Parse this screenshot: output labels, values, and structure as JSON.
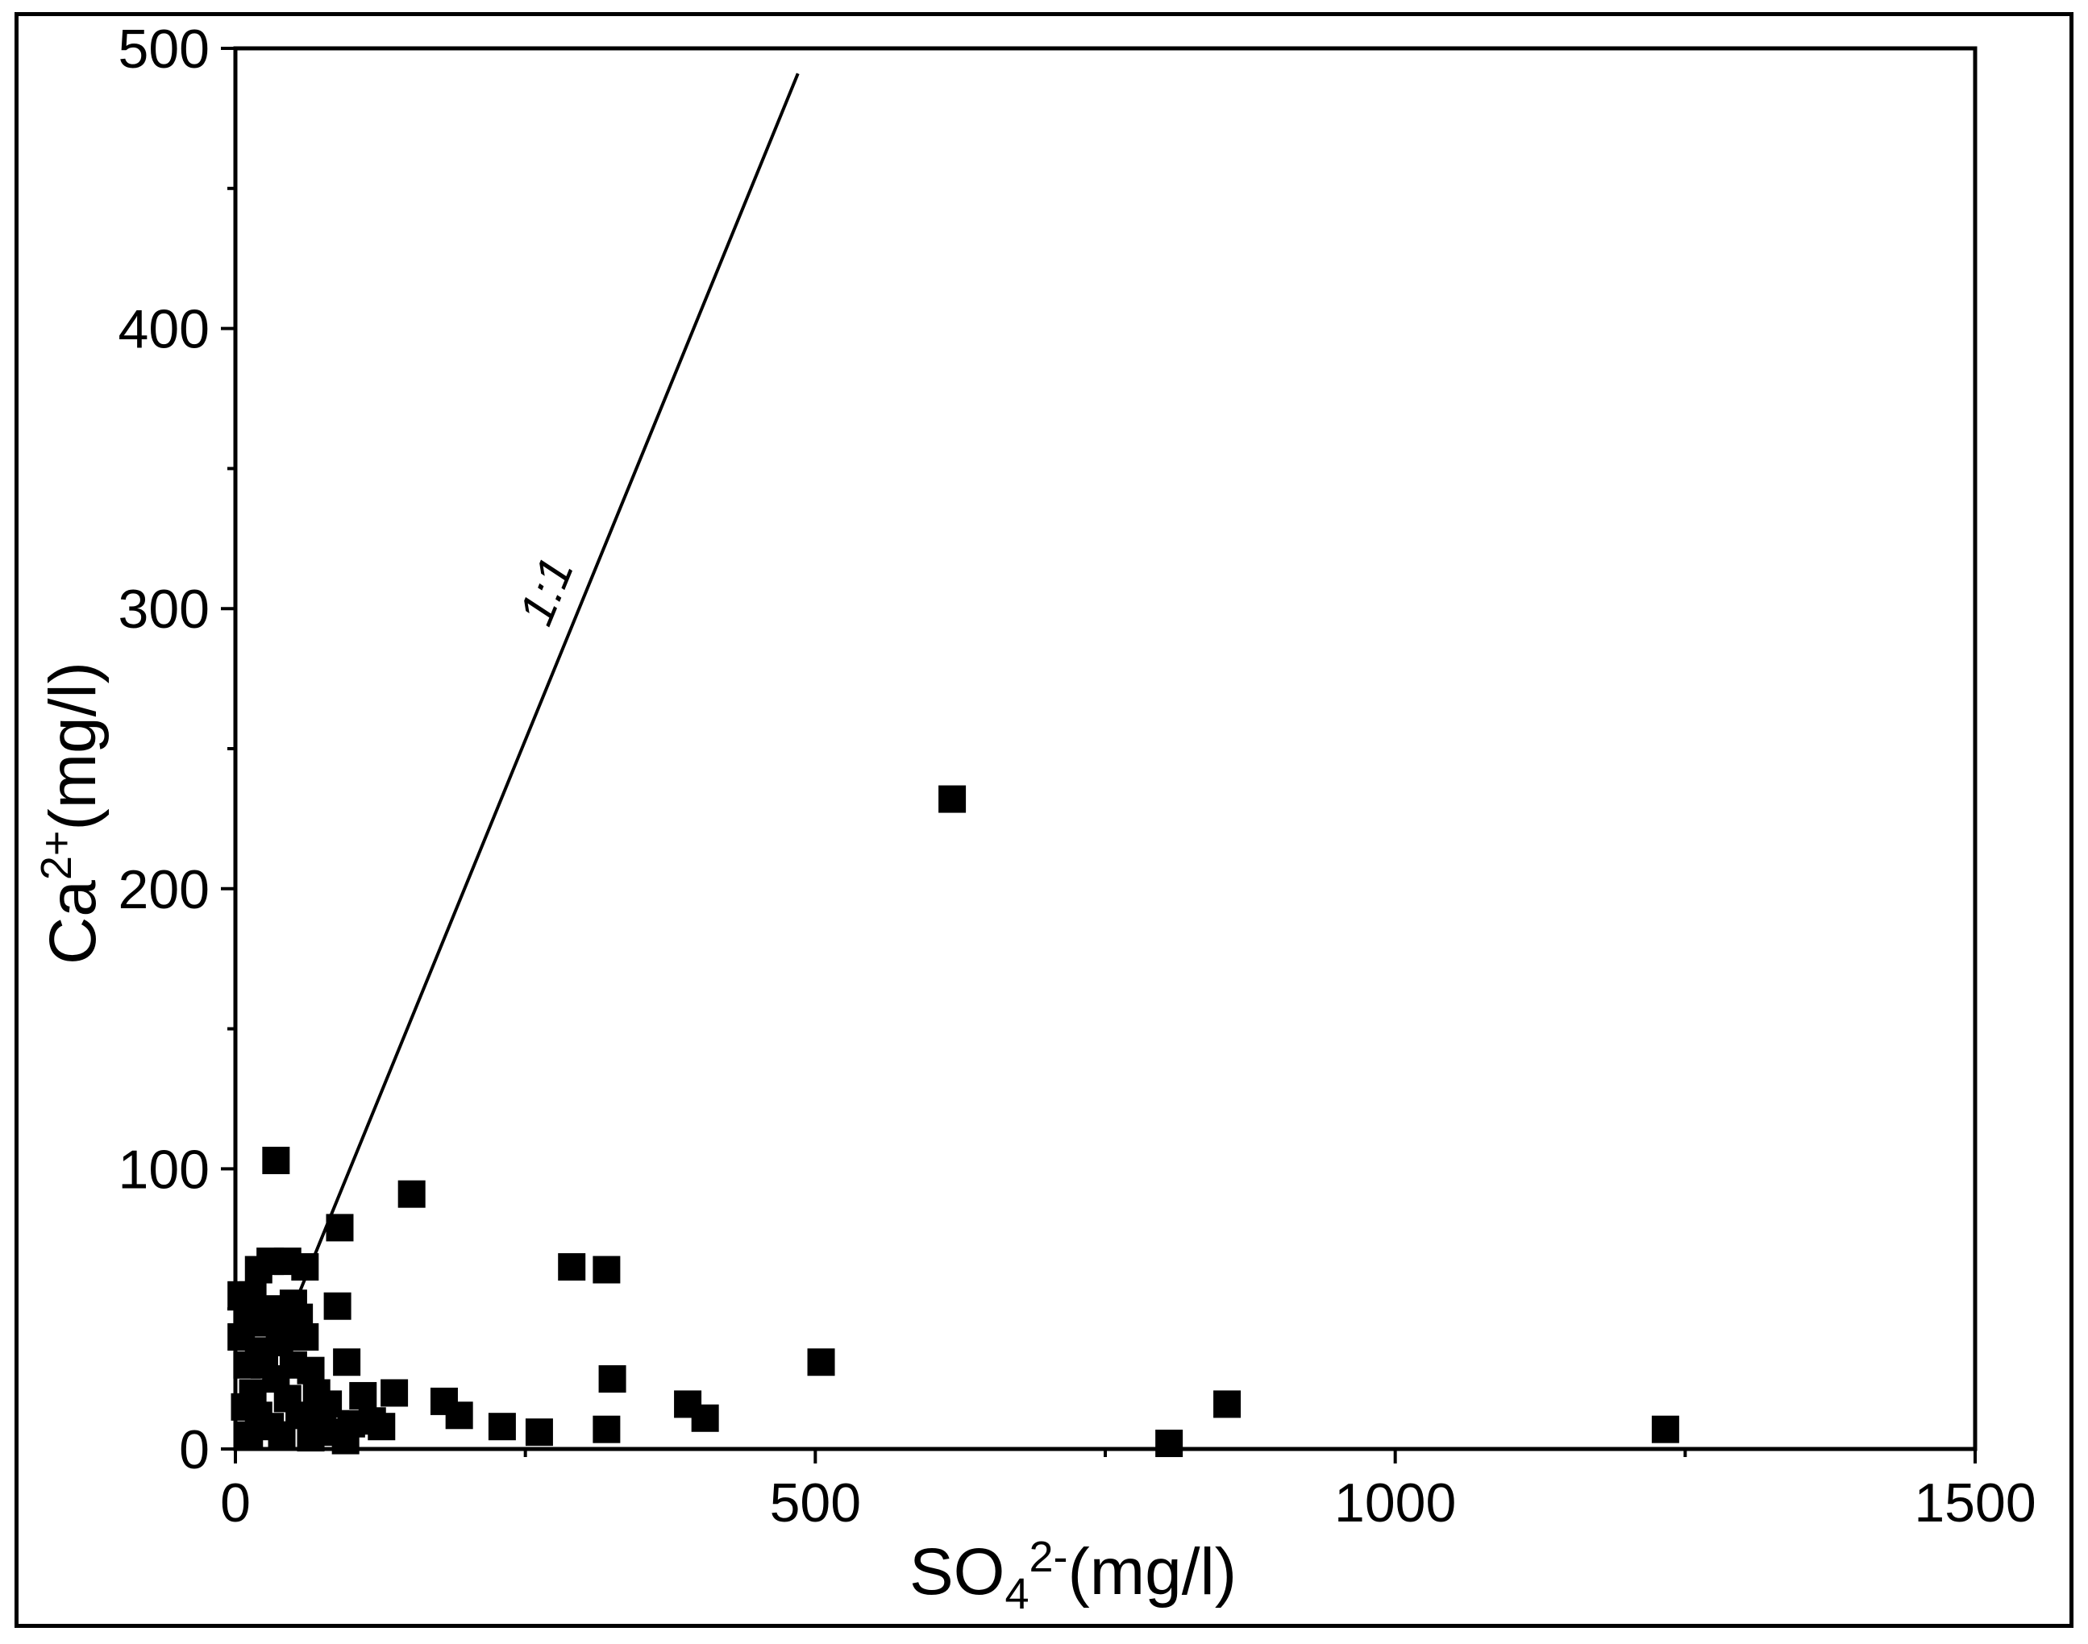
{
  "chart_data": {
    "type": "scatter",
    "title": "",
    "xlabel": {
      "base": "SO",
      "sub": "4",
      "sup": "2-",
      "unit": "(mg/l)"
    },
    "ylabel": {
      "base": "Ca",
      "sup": "2+",
      "unit": "(mg/l)"
    },
    "xlim": [
      0,
      1500
    ],
    "ylim": [
      0,
      500
    ],
    "x_ticks": [
      0,
      500,
      1000,
      1500
    ],
    "x_tick_labels": [
      "0",
      "500",
      "1000",
      "1500"
    ],
    "y_ticks": [
      0,
      100,
      200,
      300,
      400,
      500
    ],
    "y_tick_labels": [
      "0",
      "100",
      "200",
      "300",
      "400",
      "500"
    ],
    "grid": false,
    "marker": "square",
    "marker_color": "#000000",
    "reference_line": {
      "label": "1:1",
      "x": [
        0,
        485
      ],
      "y": [
        0,
        491
      ]
    },
    "series": [
      {
        "points": [
          [
            35,
            103
          ],
          [
            152,
            91
          ],
          [
            90,
            79
          ],
          [
            88,
            51
          ],
          [
            96,
            31
          ],
          [
            290,
            65
          ],
          [
            320,
            64
          ],
          [
            325,
            25
          ],
          [
            320,
            7
          ],
          [
            505,
            31
          ],
          [
            618,
            232
          ],
          [
            855,
            16
          ],
          [
            805,
            2
          ],
          [
            1233,
            7
          ],
          [
            390,
            16
          ],
          [
            405,
            11
          ],
          [
            180,
            17
          ],
          [
            193,
            12
          ],
          [
            230,
            8
          ],
          [
            262,
            6
          ],
          [
            137,
            20
          ],
          [
            110,
            19
          ],
          [
            118,
            10
          ],
          [
            126,
            8
          ],
          [
            100,
            9
          ],
          [
            80,
            16
          ],
          [
            70,
            20
          ],
          [
            60,
            40
          ],
          [
            55,
            47
          ],
          [
            50,
            52
          ],
          [
            45,
            67
          ],
          [
            30,
            67
          ],
          [
            20,
            64
          ],
          [
            15,
            55
          ],
          [
            10,
            48
          ],
          [
            40,
            44
          ],
          [
            60,
            65
          ],
          [
            25,
            30
          ],
          [
            35,
            25
          ],
          [
            45,
            18
          ],
          [
            55,
            12
          ],
          [
            10,
            30
          ],
          [
            15,
            20
          ],
          [
            20,
            12
          ],
          [
            30,
            8
          ],
          [
            40,
            5
          ],
          [
            65,
            4
          ],
          [
            5,
            40
          ],
          [
            8,
            15
          ],
          [
            12,
            5
          ],
          [
            50,
            30
          ],
          [
            65,
            28
          ],
          [
            75,
            12
          ],
          [
            85,
            6
          ],
          [
            95,
            3
          ],
          [
            28,
            50
          ],
          [
            38,
            38
          ],
          [
            20,
            35
          ],
          [
            5,
            55
          ],
          [
            18,
            45
          ]
        ]
      }
    ]
  }
}
